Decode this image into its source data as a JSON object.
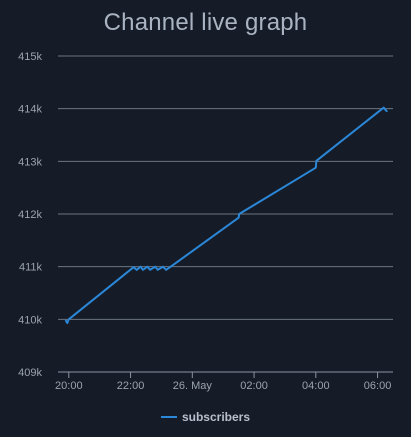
{
  "chart_data": {
    "type": "line",
    "title": "Channel live graph",
    "xlabel": "",
    "ylabel": "",
    "x_ticks": [
      "20:00",
      "22:00",
      "26. May",
      "02:00",
      "04:00",
      "06:00"
    ],
    "y_ticks": [
      "409k",
      "410k",
      "411k",
      "412k",
      "413k",
      "414k",
      "415k"
    ],
    "ylim": [
      409000,
      415000
    ],
    "xlim_hours": [
      19.65,
      30.5
    ],
    "grid": true,
    "legend_position": "bottom-center",
    "series": [
      {
        "name": "subscribers",
        "color": "#2b87d8",
        "points": [
          {
            "t": "20:00",
            "h": 19.9,
            "v": 409980
          },
          {
            "t": "20:05",
            "h": 19.95,
            "v": 409930
          },
          {
            "t": "20:10",
            "h": 20.0,
            "v": 410000
          },
          {
            "t": "22:00",
            "h": 22.1,
            "v": 410990
          },
          {
            "t": "22:10",
            "h": 22.2,
            "v": 410940
          },
          {
            "t": "22:20",
            "h": 22.33,
            "v": 411000
          },
          {
            "t": "22:25",
            "h": 22.4,
            "v": 410940
          },
          {
            "t": "22:35",
            "h": 22.55,
            "v": 411000
          },
          {
            "t": "22:40",
            "h": 22.63,
            "v": 410940
          },
          {
            "t": "22:50",
            "h": 22.8,
            "v": 411000
          },
          {
            "t": "22:55",
            "h": 22.88,
            "v": 410940
          },
          {
            "t": "23:05",
            "h": 23.05,
            "v": 411000
          },
          {
            "t": "23:10",
            "h": 23.15,
            "v": 410940
          },
          {
            "t": "23:20",
            "h": 23.3,
            "v": 411000
          },
          {
            "t": "01:30",
            "h": 25.5,
            "v": 411930
          },
          {
            "t": "01:32",
            "h": 25.52,
            "v": 412000
          },
          {
            "t": "04:00",
            "h": 28.0,
            "v": 412880
          },
          {
            "t": "04:02",
            "h": 28.02,
            "v": 413010
          },
          {
            "t": "06:10",
            "h": 30.2,
            "v": 414020
          },
          {
            "t": "06:15",
            "h": 30.3,
            "v": 413950
          }
        ]
      }
    ]
  }
}
